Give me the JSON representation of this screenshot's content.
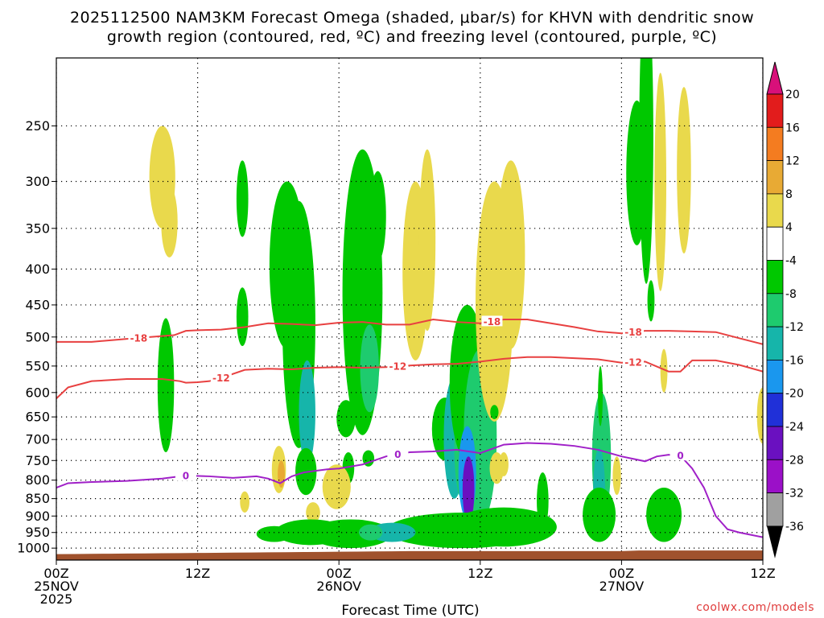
{
  "chart_data": {
    "type": "contour-timeheight",
    "title": [
      "2025112500 NAM3KM Forecast Omega (shaded, μbar/s) for KHVN with dendritic snow",
      "growth region (contoured, red, ºC) and freezing level (contoured, purple, ºC)"
    ],
    "xlabel": "Forecast Time (UTC)",
    "xlim": [
      0,
      60
    ],
    "x_ticks": [
      {
        "h": 0,
        "label": [
          "00Z",
          "25NOV",
          "2025"
        ]
      },
      {
        "h": 12,
        "label": [
          "12Z"
        ]
      },
      {
        "h": 24,
        "label": [
          "00Z",
          "26NOV"
        ]
      },
      {
        "h": 36,
        "label": [
          "12Z"
        ]
      },
      {
        "h": 48,
        "label": [
          "00Z",
          "27NOV"
        ]
      },
      {
        "h": 60,
        "label": [
          "12Z"
        ]
      }
    ],
    "y_pressure_range": [
      200,
      1040
    ],
    "y_ticks": [
      1000,
      950,
      900,
      850,
      800,
      750,
      700,
      650,
      600,
      550,
      500,
      450,
      400,
      350,
      300,
      250
    ],
    "credit": "coolwx.com/models",
    "colorbar": {
      "labels": [
        "20",
        "16",
        "12",
        "8",
        "4",
        "-4",
        "-8",
        "-12",
        "-16",
        "-20",
        "-24",
        "-28",
        "-32",
        "-36"
      ],
      "colors": [
        "#e21c1c",
        "#f47c20",
        "#e8aa34",
        "#e9d94c",
        "#ffffff",
        "#00c800",
        "#1ecb6e",
        "#16b5aa",
        "#1a97ee",
        "#2030d8",
        "#6a10c0",
        "#9b10c8",
        "#a0a0a0"
      ],
      "top_arrow_color": "#d8107a",
      "bottom_arrow_color": "#000000"
    },
    "series": [
      {
        "name": "-18 C isotherm (DGZ top)",
        "color": "#e84040",
        "label": "-18",
        "x": [
          0,
          3,
          6,
          8,
          10,
          11,
          12,
          14,
          16,
          18,
          20,
          22,
          24,
          26,
          28,
          30,
          32,
          34,
          36,
          38,
          40,
          42,
          44,
          46,
          48,
          50,
          52,
          54,
          56,
          58,
          60
        ],
        "p": [
          508,
          508,
          503,
          500,
          497,
          490,
          489,
          488,
          484,
          478,
          479,
          481,
          477,
          476,
          480,
          480,
          472,
          476,
          478,
          472,
          472,
          478,
          484,
          491,
          494,
          490,
          490,
          491,
          492,
          502,
          512
        ],
        "label_at": [
          7,
          37,
          49
        ]
      },
      {
        "name": "-12 C isotherm (DGZ bottom)",
        "color": "#e84040",
        "label": "-12",
        "x": [
          0,
          1,
          3,
          6,
          9,
          10.5,
          11,
          12,
          13,
          14,
          16,
          18,
          20,
          22,
          24,
          26,
          28,
          30,
          32,
          34,
          36,
          38,
          40,
          42,
          44,
          46,
          48,
          50,
          52,
          53,
          54,
          56,
          58,
          60
        ],
        "p": [
          612,
          590,
          578,
          574,
          574,
          578,
          581,
          580,
          578,
          572,
          557,
          555,
          556,
          553,
          552,
          553,
          552,
          549,
          547,
          546,
          542,
          537,
          534,
          534,
          536,
          538,
          544,
          542,
          560,
          560,
          540,
          540,
          548,
          560
        ],
        "label_at": [
          14,
          29,
          49
        ]
      },
      {
        "name": "0 C freezing level",
        "color": "#a020c8",
        "label": "0",
        "x": [
          0,
          1,
          3,
          6,
          9,
          11,
          13,
          15,
          17,
          18,
          19,
          20,
          21,
          22,
          23,
          24,
          26,
          28,
          30,
          32,
          34,
          36,
          38,
          40,
          42,
          44,
          46,
          48,
          49,
          50,
          51,
          52,
          53,
          54,
          55,
          56,
          57,
          58,
          60
        ],
        "p": [
          820,
          808,
          805,
          802,
          796,
          788,
          790,
          794,
          790,
          796,
          808,
          790,
          780,
          776,
          772,
          770,
          760,
          740,
          730,
          728,
          724,
          732,
          712,
          708,
          710,
          715,
          724,
          740,
          746,
          752,
          740,
          736,
          738,
          770,
          820,
          900,
          940,
          950,
          965
        ],
        "label_at": [
          11,
          29,
          53
        ]
      }
    ],
    "terrain": {
      "surface_p_min": 1010,
      "color": "#a0522d"
    },
    "omega_blobs_note": "shaded omega regions, each [hour, pressure, half_width_hours, half_depth_hPa, value]",
    "omega_blobs": [
      [
        9,
        300,
        1.1,
        50,
        4
      ],
      [
        9.6,
        345,
        0.7,
        40,
        4
      ],
      [
        9.3,
        600,
        0.7,
        130,
        -4
      ],
      [
        15.8,
        320,
        0.5,
        40,
        -4
      ],
      [
        15.8,
        470,
        0.5,
        45,
        -4
      ],
      [
        19.6,
        410,
        1.5,
        110,
        -4
      ],
      [
        20.6,
        520,
        1.4,
        200,
        -6
      ],
      [
        21.3,
        650,
        0.7,
        110,
        -12
      ],
      [
        26,
        480,
        1.7,
        210,
        -6
      ],
      [
        26.6,
        560,
        0.8,
        80,
        -8
      ],
      [
        27.3,
        340,
        0.7,
        50,
        -4
      ],
      [
        30.5,
        420,
        1.1,
        120,
        4
      ],
      [
        31.5,
        380,
        0.7,
        110,
        4
      ],
      [
        33,
        680,
        1.1,
        70,
        -6
      ],
      [
        33.8,
        710,
        0.9,
        140,
        -14
      ],
      [
        34.6,
        730,
        0.8,
        130,
        -10
      ],
      [
        34.9,
        600,
        1.5,
        150,
        -6
      ],
      [
        36,
        720,
        1.4,
        200,
        -8
      ],
      [
        34.9,
        790,
        0.75,
        120,
        -18
      ],
      [
        35,
        830,
        0.5,
        90,
        -26
      ],
      [
        37.2,
        480,
        1.6,
        180,
        4
      ],
      [
        38.6,
        400,
        1.2,
        120,
        4
      ],
      [
        38,
        760,
        0.4,
        30,
        4
      ],
      [
        38,
        935,
        4.5,
        60,
        -6
      ],
      [
        34.5,
        945,
        6.5,
        55,
        -6
      ],
      [
        25,
        955,
        3.5,
        45,
        -6
      ],
      [
        28.5,
        950,
        2,
        30,
        -12
      ],
      [
        26.7,
        950,
        1,
        25,
        -10
      ],
      [
        24.8,
        770,
        0.5,
        40,
        -4
      ],
      [
        26.5,
        745,
        0.5,
        20,
        -4
      ],
      [
        23.8,
        820,
        1.2,
        60,
        4
      ],
      [
        21.8,
        890,
        0.6,
        30,
        4
      ],
      [
        24.6,
        655,
        0.8,
        40,
        -4
      ],
      [
        21.2,
        780,
        0.9,
        60,
        -4
      ],
      [
        18.9,
        775,
        0.6,
        60,
        6
      ],
      [
        19.1,
        785,
        0.3,
        35,
        10
      ],
      [
        16,
        860,
        0.4,
        30,
        4
      ],
      [
        21.6,
        950,
        3,
        40,
        -4
      ],
      [
        18.5,
        955,
        1.5,
        25,
        -4
      ],
      [
        37.2,
        640,
        0.35,
        15,
        -4
      ],
      [
        37.4,
        770,
        0.6,
        40,
        4
      ],
      [
        41.3,
        860,
        0.5,
        80,
        -4
      ],
      [
        46.3,
        760,
        0.8,
        160,
        -8
      ],
      [
        46.1,
        840,
        0.5,
        120,
        -12
      ],
      [
        46.1,
        900,
        1.4,
        80,
        -4
      ],
      [
        46.2,
        610,
        0.2,
        60,
        -4
      ],
      [
        47.6,
        790,
        0.35,
        50,
        4
      ],
      [
        49.3,
        300,
        0.9,
        70,
        -4
      ],
      [
        50.1,
        290,
        0.6,
        130,
        -4
      ],
      [
        50.5,
        445,
        0.3,
        30,
        -4
      ],
      [
        51.3,
        320,
        0.5,
        110,
        4
      ],
      [
        53.3,
        300,
        0.6,
        80,
        4
      ],
      [
        51.6,
        900,
        1.5,
        80,
        -4
      ],
      [
        51.6,
        560,
        0.3,
        40,
        4
      ],
      [
        60,
        650,
        0.5,
        60,
        4
      ]
    ]
  }
}
